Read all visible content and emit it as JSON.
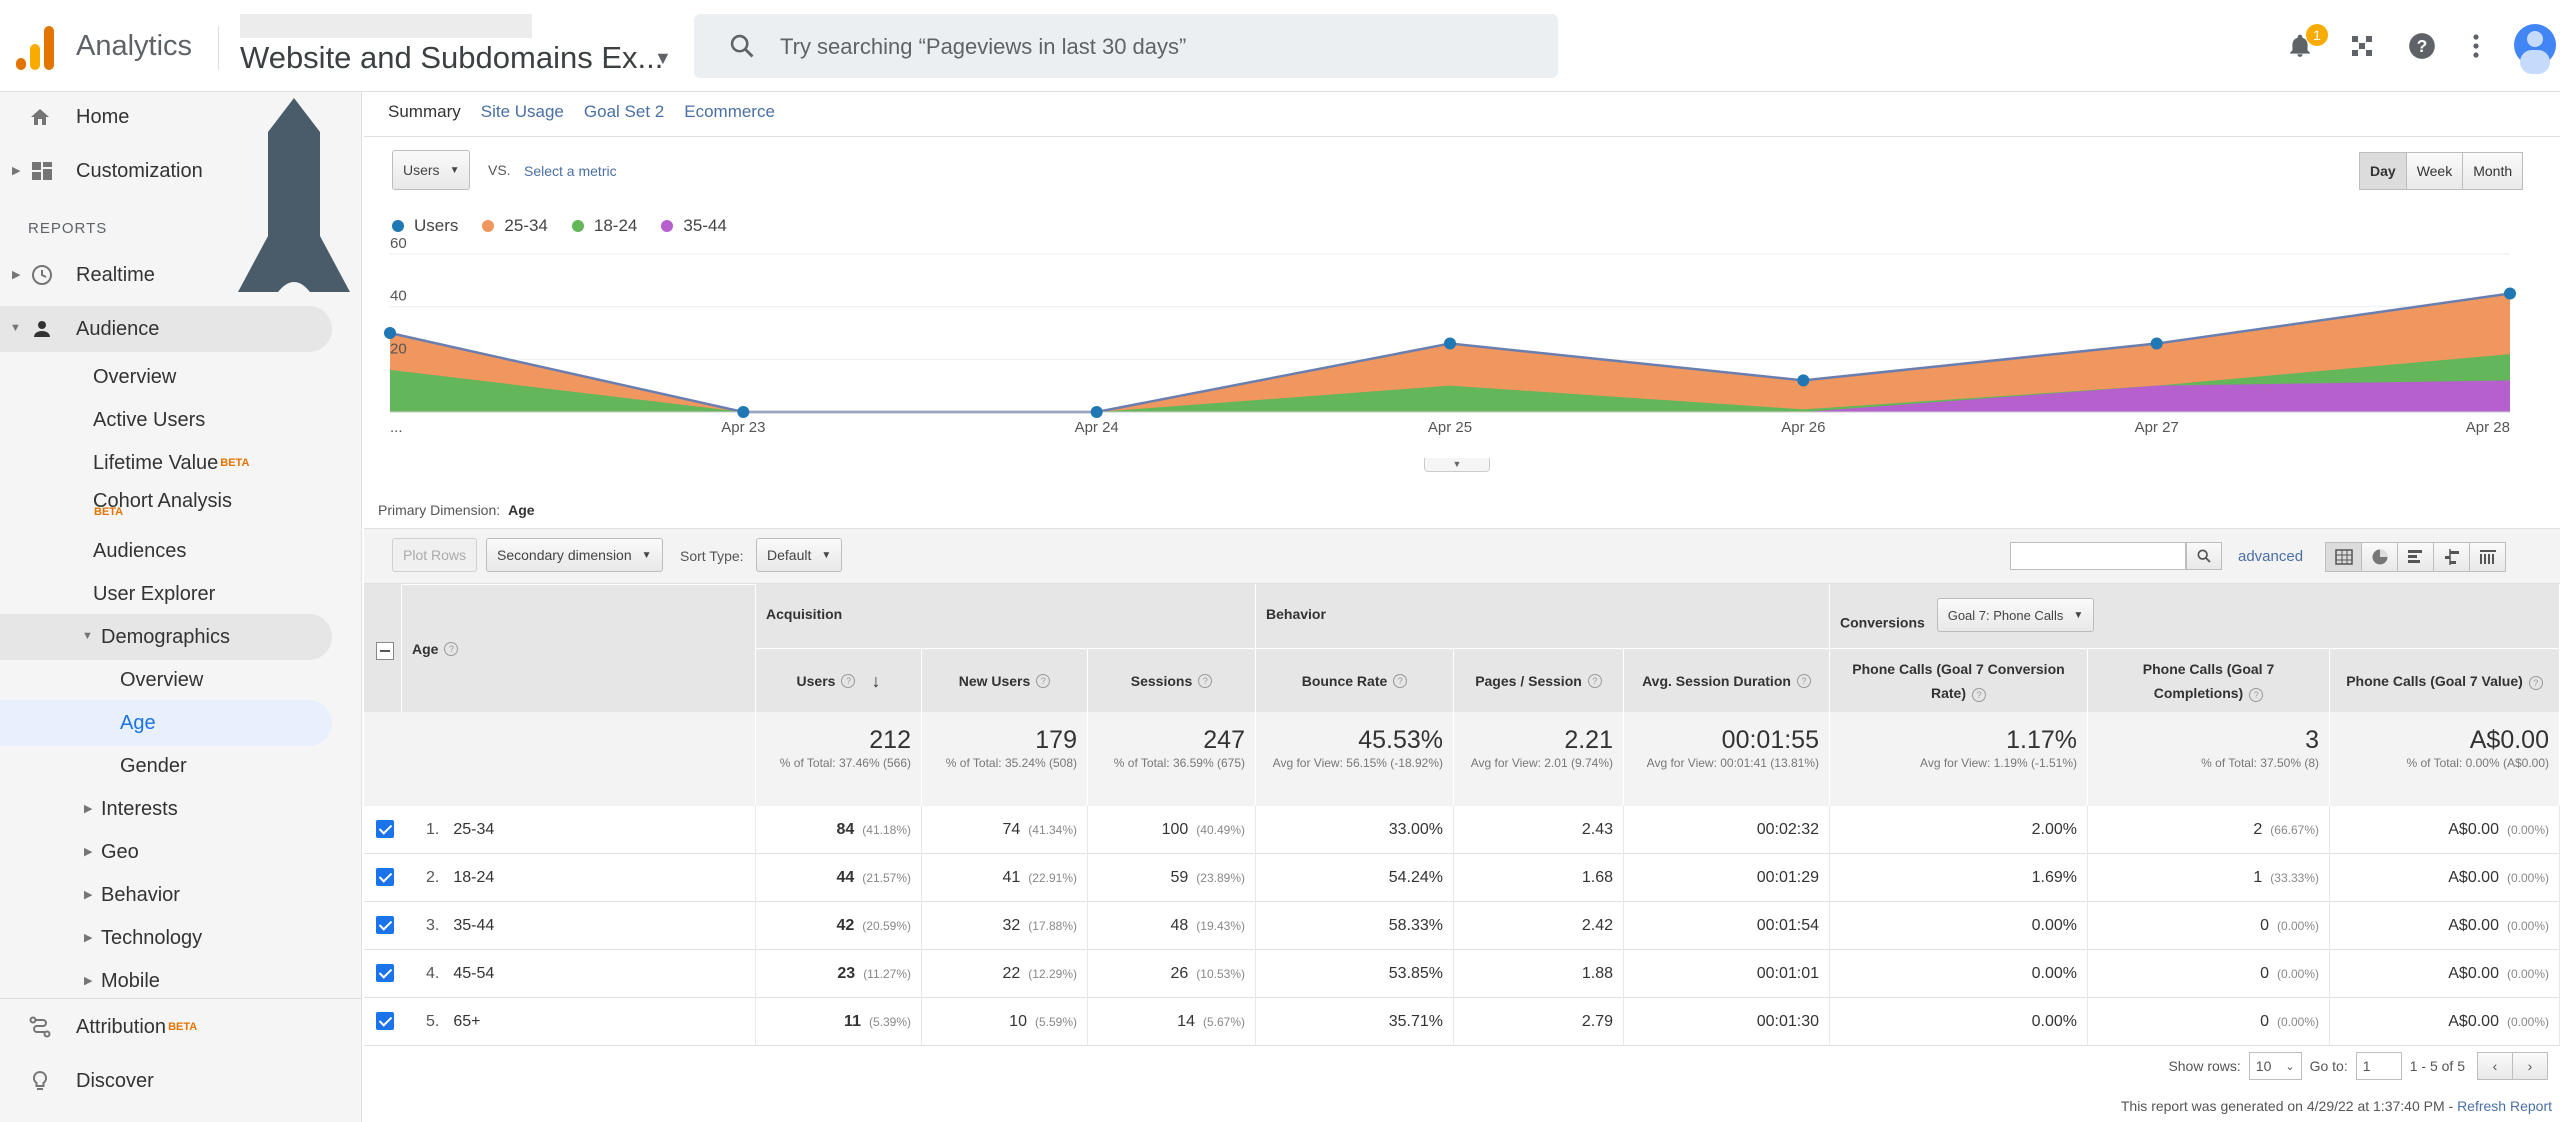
{
  "header": {
    "app_name": "Analytics",
    "property_name": "Website and Subdomains Ex...",
    "search_placeholder": "Try searching “Pageviews in last 30 days”",
    "notification_count": "1"
  },
  "sidebar": {
    "home": "Home",
    "customization": "Customization",
    "reports_header": "REPORTS",
    "realtime": "Realtime",
    "audience": "Audience",
    "overview": "Overview",
    "active_users": "Active Users",
    "lifetime_value": "Lifetime Value",
    "cohort_analysis": "Cohort Analysis",
    "audiences": "Audiences",
    "user_explorer": "User Explorer",
    "demographics": "Demographics",
    "demo_overview": "Overview",
    "age": "Age",
    "gender": "Gender",
    "interests": "Interests",
    "geo": "Geo",
    "behavior": "Behavior",
    "technology": "Technology",
    "mobile": "Mobile",
    "attribution": "Attribution",
    "discover": "Discover",
    "beta": "BETA"
  },
  "tabs": [
    "Summary",
    "Site Usage",
    "Goal Set 2",
    "Ecommerce"
  ],
  "controls": {
    "metric": "Users",
    "vs": "VS.",
    "select_metric": "Select a metric",
    "day": "Day",
    "week": "Week",
    "month": "Month"
  },
  "colors": {
    "users": "#1f77b4",
    "a25_34": "#f0965f",
    "a18_24": "#63b659",
    "a35_44": "#b660cd"
  },
  "chart_data": {
    "type": "area",
    "x": [
      "...",
      "Apr 23",
      "Apr 24",
      "Apr 25",
      "Apr 26",
      "Apr 27",
      "Apr 28"
    ],
    "x_tick_labels": [
      "...",
      "Apr 23",
      "Apr 24",
      "Apr 25",
      "Apr 26",
      "Apr 27",
      "Apr 28"
    ],
    "y_ticks": [
      "20",
      "40",
      "60"
    ],
    "ylim": [
      0,
      60
    ],
    "legend": [
      "Users",
      "25-34",
      "18-24",
      "35-44"
    ],
    "series": [
      {
        "name": "Users",
        "values": [
          30,
          0,
          0,
          26,
          12,
          26,
          45
        ]
      },
      {
        "name": "25-34",
        "values": [
          30,
          0,
          0,
          26,
          12,
          26,
          45
        ]
      },
      {
        "name": "18-24",
        "values": [
          16,
          0,
          0,
          10,
          1,
          10,
          22
        ]
      },
      {
        "name": "35-44",
        "values": [
          0,
          0,
          0,
          0,
          0,
          10,
          12
        ]
      }
    ]
  },
  "primary_dimension": {
    "label": "Primary Dimension:",
    "value": "Age"
  },
  "toolbar": {
    "plot_rows": "Plot Rows",
    "secondary_dimension": "Secondary dimension",
    "sort_type_label": "Sort Type:",
    "sort_type": "Default",
    "advanced": "advanced"
  },
  "table": {
    "dim_header": "Age",
    "groups": {
      "acquisition": "Acquisition",
      "behavior": "Behavior",
      "conversions": "Conversions",
      "goal_select": "Goal 7: Phone Calls"
    },
    "columns": [
      "Users",
      "New Users",
      "Sessions",
      "Bounce Rate",
      "Pages / Session",
      "Avg. Session Duration",
      "Phone Calls (Goal 7 Conversion Rate)",
      "Phone Calls (Goal 7 Completions)",
      "Phone Calls (Goal 7 Value)"
    ],
    "totals": [
      {
        "value": "212",
        "sub": "% of Total: 37.46% (566)"
      },
      {
        "value": "179",
        "sub": "% of Total: 35.24% (508)"
      },
      {
        "value": "247",
        "sub": "% of Total: 36.59% (675)"
      },
      {
        "value": "45.53%",
        "sub": "Avg for View: 56.15% (-18.92%)"
      },
      {
        "value": "2.21",
        "sub": "Avg for View: 2.01 (9.74%)"
      },
      {
        "value": "00:01:55",
        "sub": "Avg for View: 00:01:41 (13.81%)"
      },
      {
        "value": "1.17%",
        "sub": "Avg for View: 1.19% (-1.51%)"
      },
      {
        "value": "3",
        "sub": "% of Total: 37.50% (8)"
      },
      {
        "value": "A$0.00",
        "sub": "% of Total: 0.00% (A$0.00)"
      }
    ],
    "rows": [
      {
        "num": "1.",
        "label": "25-34",
        "users": "84",
        "users_pct": "(41.18%)",
        "new_users": "74",
        "new_users_pct": "(41.34%)",
        "sessions": "100",
        "sessions_pct": "(40.49%)",
        "bounce": "33.00%",
        "pps": "2.43",
        "dur": "00:02:32",
        "conv_rate": "2.00%",
        "comp": "2",
        "comp_pct": "(66.67%)",
        "value": "A$0.00",
        "value_pct": "(0.00%)"
      },
      {
        "num": "2.",
        "label": "18-24",
        "users": "44",
        "users_pct": "(21.57%)",
        "new_users": "41",
        "new_users_pct": "(22.91%)",
        "sessions": "59",
        "sessions_pct": "(23.89%)",
        "bounce": "54.24%",
        "pps": "1.68",
        "dur": "00:01:29",
        "conv_rate": "1.69%",
        "comp": "1",
        "comp_pct": "(33.33%)",
        "value": "A$0.00",
        "value_pct": "(0.00%)"
      },
      {
        "num": "3.",
        "label": "35-44",
        "users": "42",
        "users_pct": "(20.59%)",
        "new_users": "32",
        "new_users_pct": "(17.88%)",
        "sessions": "48",
        "sessions_pct": "(19.43%)",
        "bounce": "58.33%",
        "pps": "2.42",
        "dur": "00:01:54",
        "conv_rate": "0.00%",
        "comp": "0",
        "comp_pct": "(0.00%)",
        "value": "A$0.00",
        "value_pct": "(0.00%)"
      },
      {
        "num": "4.",
        "label": "45-54",
        "users": "23",
        "users_pct": "(11.27%)",
        "new_users": "22",
        "new_users_pct": "(12.29%)",
        "sessions": "26",
        "sessions_pct": "(10.53%)",
        "bounce": "53.85%",
        "pps": "1.88",
        "dur": "00:01:01",
        "conv_rate": "0.00%",
        "comp": "0",
        "comp_pct": "(0.00%)",
        "value": "A$0.00",
        "value_pct": "(0.00%)"
      },
      {
        "num": "5.",
        "label": "65+",
        "users": "11",
        "users_pct": "(5.39%)",
        "new_users": "10",
        "new_users_pct": "(5.59%)",
        "sessions": "14",
        "sessions_pct": "(5.67%)",
        "bounce": "35.71%",
        "pps": "2.79",
        "dur": "00:01:30",
        "conv_rate": "0.00%",
        "comp": "0",
        "comp_pct": "(0.00%)",
        "value": "A$0.00",
        "value_pct": "(0.00%)"
      }
    ]
  },
  "footer": {
    "show_rows_label": "Show rows:",
    "show_rows": "10",
    "goto_label": "Go to:",
    "goto": "1",
    "range": "1 - 5 of 5",
    "generated": "This report was generated on 4/29/22 at 1:37:40 PM -",
    "refresh": "Refresh Report"
  }
}
